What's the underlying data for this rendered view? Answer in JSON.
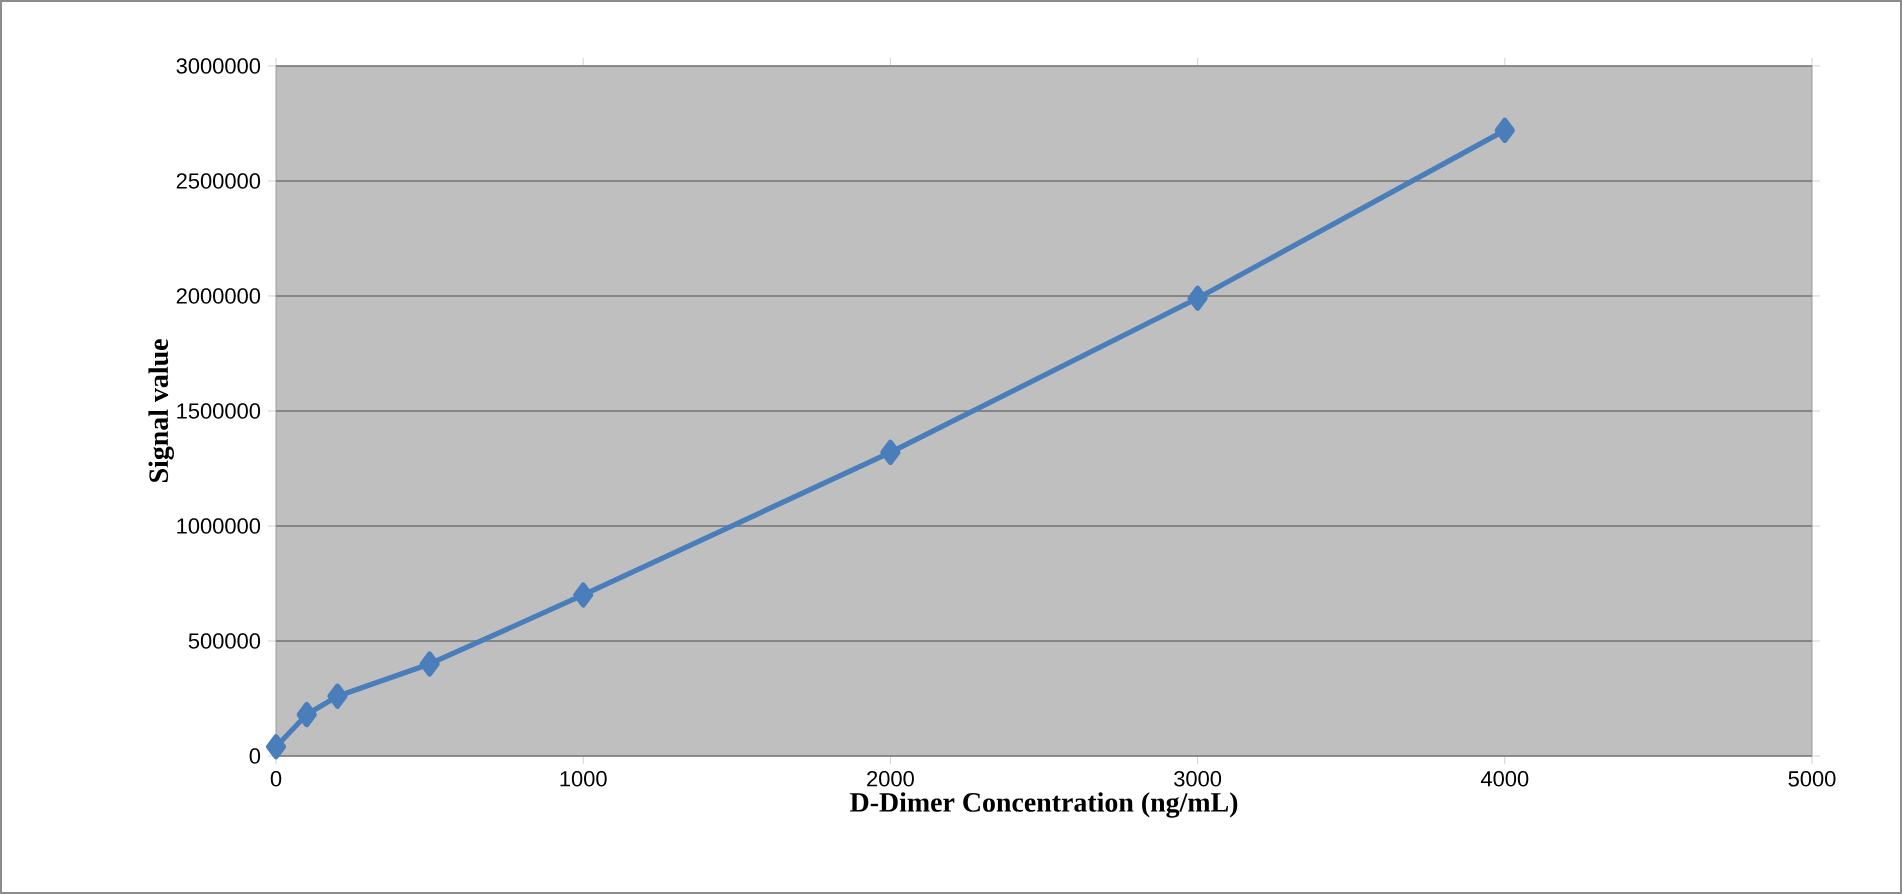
{
  "chart_data": {
    "type": "line",
    "xlabel": "D-Dimer Concentration (ng/mL)",
    "ylabel": "Signal value",
    "x": [
      0,
      100,
      200,
      500,
      1000,
      2000,
      3000,
      4000
    ],
    "series": [
      {
        "color": "#4a7ebb",
        "values": [
          40000,
          180000,
          260000,
          400000,
          700000,
          1320000,
          1990000,
          2720000
        ]
      }
    ],
    "xlim": [
      0,
      5000
    ],
    "xticks": [
      0,
      1000,
      2000,
      3000,
      4000,
      5000
    ],
    "ylim": [
      0,
      3000000
    ],
    "yticks": [
      0,
      500000,
      1000000,
      1500000,
      2000000,
      2500000,
      3000000
    ],
    "grid": "y",
    "marker": "diamond",
    "line_style": "solid"
  }
}
